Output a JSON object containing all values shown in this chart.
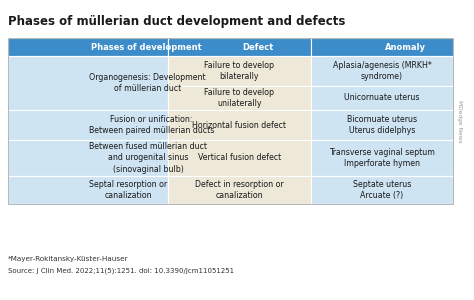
{
  "title": "Phases of müllerian duct development and defects",
  "header": [
    "Phases of development",
    "Defect",
    "Anomaly"
  ],
  "header_bg": "#3B8CC8",
  "header_text_color": "#FFFFFF",
  "row_bg_light": "#CFE4F3",
  "row_bg_cream": "#EDE8D8",
  "title_color": "#1a1a1a",
  "footnote1": "*Mayer-Rokitansky-Küster-Hauser",
  "footnote2": "Source: J Clin Med. 2022;11(5):1251. doi: 10.3390/jcm11051251",
  "watermark": "MDedge News",
  "background_color": "#FFFFFF",
  "phase_cells": [
    {
      "r_start": 0,
      "r_end": 1,
      "text": "Organogenesis: Development\nof müllerian duct"
    },
    {
      "r_start": 2,
      "r_end": 2,
      "text": "Fusion or unification:\nBetween paired müllerian ducts"
    },
    {
      "r_start": 3,
      "r_end": 3,
      "text": "Between fused müllerian duct\nand urogenital sinus\n(sinovaginal bulb)"
    },
    {
      "r_start": 4,
      "r_end": 4,
      "text": "Septal resorption or\ncanalization"
    }
  ],
  "defect_cells": [
    {
      "r": 0,
      "text": "Failure to develop\nbilaterally"
    },
    {
      "r": 1,
      "text": "Failure to develop\nunilaterally"
    },
    {
      "r": 2,
      "text": "Horizontal fusion defect"
    },
    {
      "r": 3,
      "text": "Vertical fusion defect"
    },
    {
      "r": 4,
      "text": "Defect in resorption or\ncanalization"
    }
  ],
  "anomaly_cells": [
    {
      "r": 0,
      "text": "Aplasia/agenesis (MRKH*\nsyndrome)"
    },
    {
      "r": 1,
      "text": "Unicornuate uterus"
    },
    {
      "r": 2,
      "text": "Bicornuate uterus\nUterus didelphys"
    },
    {
      "r": 3,
      "text": "Transverse vaginal septum\nImperforate hymen"
    },
    {
      "r": 4,
      "text": "Septate uterus\nArcuate (?)"
    }
  ]
}
